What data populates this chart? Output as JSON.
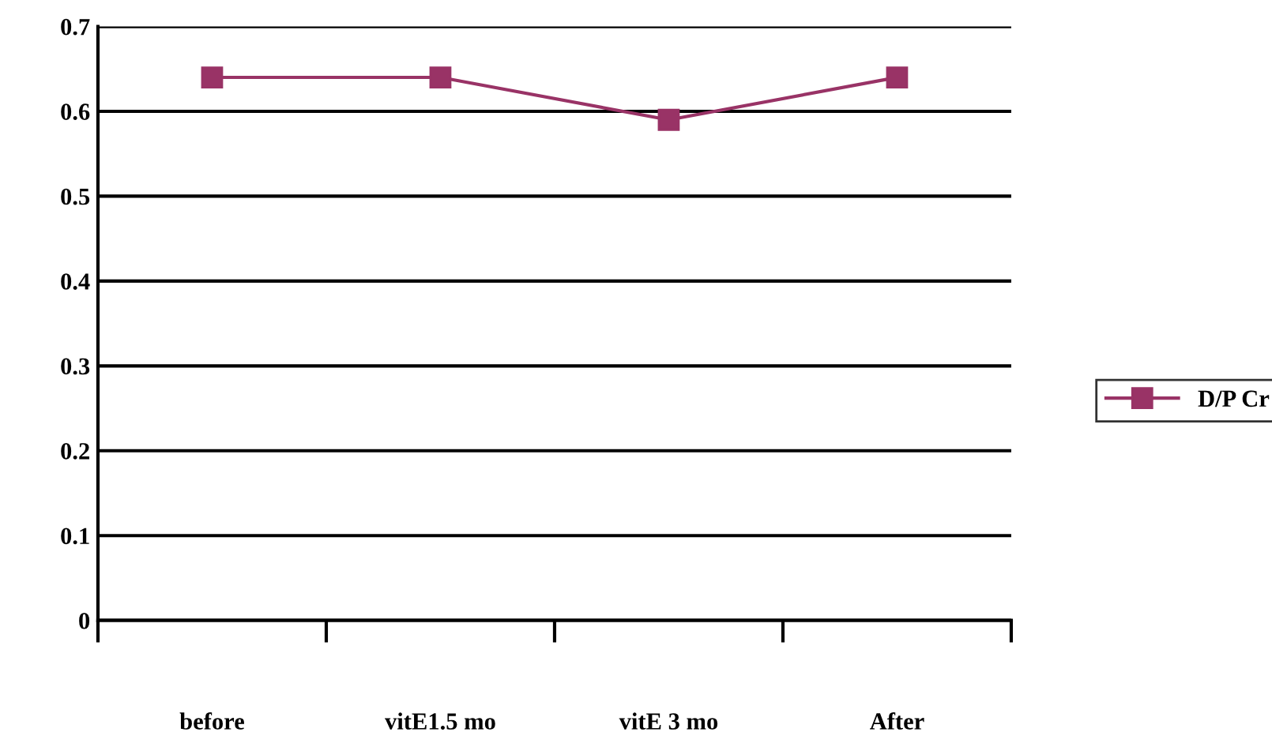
{
  "chart_data": {
    "type": "line",
    "categories": [
      "before",
      "vitE1.5 mo",
      "vitE 3 mo",
      "After"
    ],
    "series": [
      {
        "name": "D/P Cr",
        "color": "#993366",
        "values": [
          0.64,
          0.64,
          0.59,
          0.64
        ]
      }
    ],
    "ylim": [
      0,
      0.7
    ],
    "yticks": [
      0,
      0.1,
      0.2,
      0.3,
      0.4,
      0.5,
      0.6,
      0.7
    ],
    "grid": "y",
    "legend": "right",
    "marker": "square",
    "line_style": "solid"
  }
}
